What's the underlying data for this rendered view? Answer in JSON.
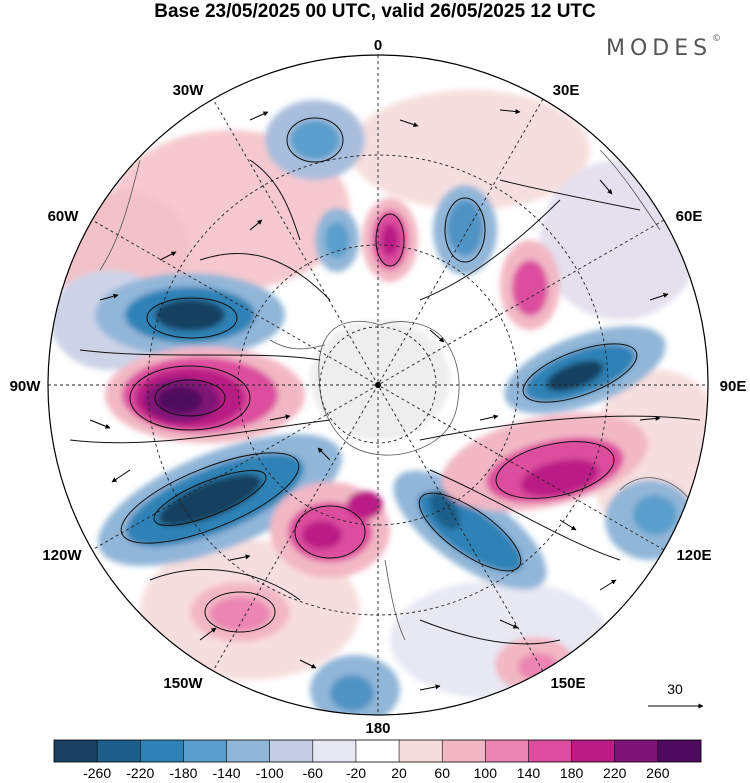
{
  "title": "Base 23/05/2025 00 UTC, valid 26/05/2025 12 UTC",
  "brand": {
    "name": "MODES",
    "mark": "©"
  },
  "map": {
    "projection": "polar-stereographic-south",
    "longitude_labels": {
      "lon_0": "0",
      "lon_30e": "30E",
      "lon_60e": "60E",
      "lon_90e": "90E",
      "lon_120e": "120E",
      "lon_150e": "150E",
      "lon_180": "180",
      "lon_150w": "150W",
      "lon_120w": "120W",
      "lon_90w": "90W",
      "lon_60w": "60W",
      "lon_30w": "30W"
    },
    "wind_reference": {
      "label": "30"
    }
  },
  "colorbar": {
    "ticks": [
      "-260",
      "-220",
      "-180",
      "-140",
      "-100",
      "-60",
      "-20",
      "20",
      "60",
      "100",
      "140",
      "180",
      "220",
      "260"
    ],
    "colors": [
      "#19415f",
      "#1d5f8a",
      "#2e82b6",
      "#5a9fcb",
      "#92b6d8",
      "#c4cde4",
      "#e7e8f2",
      "#ffffff",
      "#f7dede",
      "#f2b7c4",
      "#ec85b1",
      "#dc4d9e",
      "#b91c84",
      "#7e1477",
      "#4d0a5e"
    ]
  }
}
